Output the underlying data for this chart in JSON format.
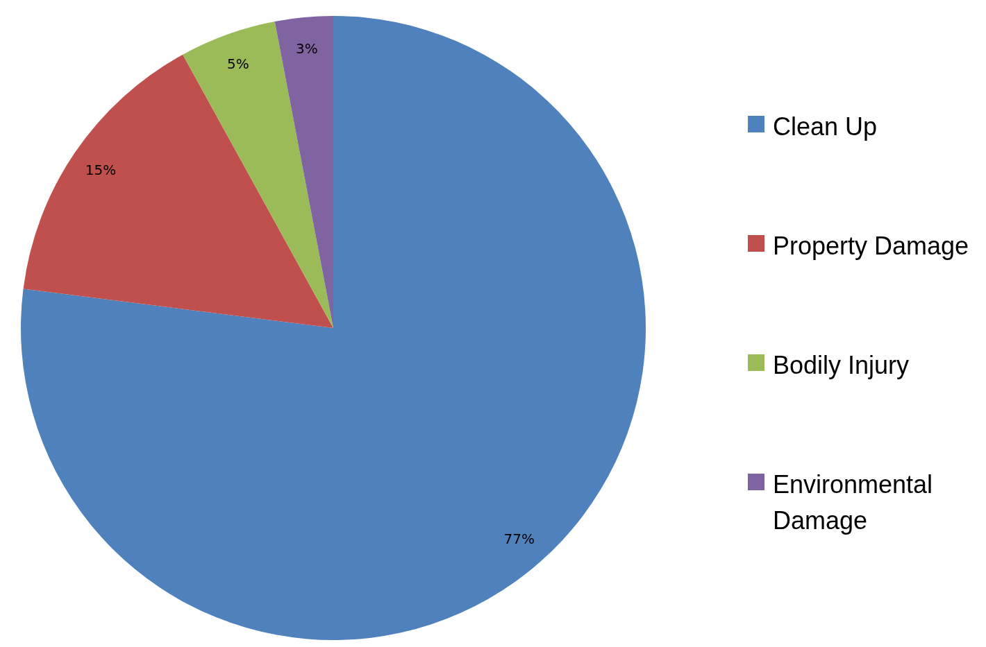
{
  "chart_data": {
    "type": "pie",
    "categories": [
      "Clean Up",
      "Property Damage",
      "Bodily Injury",
      "Environmental Damage"
    ],
    "values": [
      77,
      15,
      5,
      3
    ],
    "colors": [
      "#4f81bd",
      "#c0504d",
      "#9bbb59",
      "#8064a2"
    ],
    "value_labels": [
      "77%",
      "15%",
      "5%",
      "3%"
    ],
    "legend": "right"
  }
}
